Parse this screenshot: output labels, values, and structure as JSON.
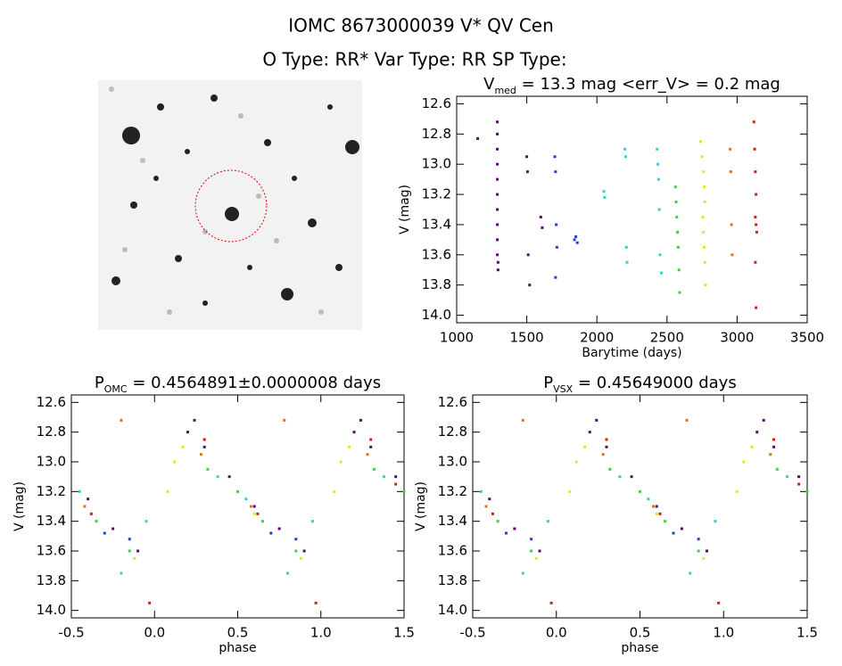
{
  "header": {
    "title": "IOMC 8673000039    V* QV Cen",
    "subtitle": "O Type: RR*  Var Type: RR  SP Type:"
  },
  "chart_data": [
    {
      "type": "scatter",
      "title": [
        {
          "text": "V"
        },
        {
          "text": "med",
          "sub": true
        },
        {
          "text": " = 13.3 mag <err_V> = 0.2 mag"
        }
      ],
      "x_label": "Barytime (days)",
      "y_label": "V (mag)",
      "xlim": [
        1000,
        3500
      ],
      "xticks": [
        1000,
        1500,
        2000,
        2500,
        3000,
        3500
      ],
      "ylim": [
        14.05,
        12.55
      ],
      "yticks": [
        12.6,
        12.8,
        {
          "value": 13,
          "label": "13.0"
        },
        13.2,
        13.4,
        13.6,
        13.8,
        {
          "value": 14,
          "label": "14.0"
        }
      ],
      "series": [
        {
          "color": "#5a0a6e",
          "x": [
            1150,
            1290,
            1290,
            1290,
            1290,
            1290,
            1290,
            1290,
            1290,
            1290,
            1290,
            1295,
            1295,
            1500,
            1505,
            1510,
            1520,
            1600,
            1610
          ],
          "y": [
            12.83,
            12.72,
            12.8,
            12.9,
            13.0,
            13.1,
            13.2,
            13.3,
            13.4,
            13.5,
            13.6,
            13.65,
            13.7,
            12.95,
            13.05,
            13.6,
            13.8,
            13.35,
            13.42
          ]
        },
        {
          "color": "#2040d0",
          "x": [
            1700,
            1705,
            1710,
            1715,
            1705,
            1840,
            1850,
            1860
          ],
          "y": [
            12.95,
            13.05,
            13.4,
            13.55,
            13.75,
            13.5,
            13.48,
            13.52
          ]
        },
        {
          "color": "#30d0d0",
          "x": [
            2050,
            2055,
            2200,
            2205,
            2210,
            2215,
            2430,
            2435,
            2440,
            2445,
            2450,
            2460
          ],
          "y": [
            13.18,
            13.22,
            12.9,
            12.95,
            13.55,
            13.65,
            12.9,
            13.0,
            13.1,
            13.3,
            13.6,
            13.72
          ]
        },
        {
          "color": "#40d040",
          "x": [
            2560,
            2565,
            2570,
            2575,
            2580,
            2585,
            2590
          ],
          "y": [
            13.15,
            13.25,
            13.35,
            13.45,
            13.55,
            13.7,
            13.85
          ]
        },
        {
          "color": "#d8ec20",
          "x": [
            2740,
            2750,
            2760,
            2765,
            2770,
            2755,
            2760,
            2765,
            2770,
            2775
          ],
          "y": [
            12.85,
            12.95,
            13.05,
            13.15,
            13.25,
            13.35,
            13.45,
            13.55,
            13.65,
            13.8
          ]
        },
        {
          "color": "#e07020",
          "x": [
            2950,
            2955,
            2960,
            2965
          ],
          "y": [
            12.9,
            13.05,
            13.4,
            13.6
          ]
        },
        {
          "color": "#d02010",
          "x": [
            3120,
            3125,
            3130,
            3135,
            3130,
            3135,
            3140,
            3130,
            3135
          ],
          "y": [
            12.72,
            12.9,
            13.05,
            13.2,
            13.35,
            13.4,
            13.45,
            13.65,
            13.95
          ]
        }
      ]
    },
    {
      "type": "scatter",
      "title": [
        {
          "text": "P"
        },
        {
          "text": "OMC",
          "sub": true
        },
        {
          "text": " = 0.4564891±0.0000008 days"
        }
      ],
      "x_label": "phase",
      "y_label": "V (mag)",
      "xlim": [
        -0.5,
        1.5
      ],
      "xticks": [
        -0.5,
        {
          "value": 0,
          "label": "0.0"
        },
        0.5,
        {
          "value": 1,
          "label": "1.0"
        },
        1.5
      ],
      "ylim": [
        14.05,
        12.55
      ],
      "yticks": [
        12.6,
        12.8,
        {
          "value": 13,
          "label": "13.0"
        },
        13.2,
        13.4,
        13.6,
        13.8,
        {
          "value": 14,
          "label": "14.0"
        }
      ],
      "series": [
        {
          "color": "#5a0a6e",
          "x": [
            -0.4,
            -0.25,
            -0.1,
            0.2,
            0.24,
            0.3,
            0.45,
            0.6,
            0.75,
            0.9,
            1.2,
            1.24,
            1.3,
            1.45
          ],
          "y": [
            13.25,
            13.45,
            13.6,
            12.8,
            12.72,
            12.9,
            13.1,
            13.3,
            13.45,
            13.6,
            12.8,
            12.72,
            12.9,
            13.1
          ]
        },
        {
          "color": "#2040d0",
          "x": [
            -0.3,
            -0.15,
            0.7,
            0.85
          ],
          "y": [
            13.48,
            13.52,
            13.48,
            13.52
          ]
        },
        {
          "color": "#30d0d0",
          "x": [
            -0.45,
            -0.2,
            -0.05,
            0.38,
            0.55,
            0.8,
            0.95,
            1.38
          ],
          "y": [
            13.2,
            13.75,
            13.4,
            13.1,
            13.25,
            13.75,
            13.4,
            13.1
          ]
        },
        {
          "color": "#40d040",
          "x": [
            -0.35,
            -0.15,
            0.32,
            0.5,
            0.65,
            0.85,
            1.32,
            1.5
          ],
          "y": [
            13.4,
            13.6,
            13.05,
            13.2,
            13.4,
            13.6,
            13.05,
            13.2
          ]
        },
        {
          "color": "#d8ec20",
          "x": [
            -0.12,
            0.08,
            0.12,
            0.17,
            0.6,
            0.88,
            1.08,
            1.12,
            1.17
          ],
          "y": [
            13.65,
            13.2,
            13.0,
            12.9,
            13.35,
            13.65,
            13.2,
            13.0,
            12.9
          ]
        },
        {
          "color": "#e07020",
          "x": [
            -0.42,
            -0.2,
            0.28,
            0.58,
            0.78,
            1.28
          ],
          "y": [
            13.3,
            12.72,
            12.95,
            13.3,
            12.72,
            12.95
          ]
        },
        {
          "color": "#d02010",
          "x": [
            -0.38,
            -0.03,
            0.3,
            0.62,
            0.97,
            1.3,
            1.45
          ],
          "y": [
            13.35,
            13.95,
            12.85,
            13.35,
            13.95,
            12.85,
            13.15
          ]
        }
      ]
    },
    {
      "type": "scatter",
      "title": [
        {
          "text": "P"
        },
        {
          "text": "VSX",
          "sub": true
        },
        {
          "text": " = 0.45649000 days"
        }
      ],
      "x_label": "phase",
      "y_label": "V (mag)",
      "xlim": [
        -0.5,
        1.5
      ],
      "xticks": [
        -0.5,
        {
          "value": 0,
          "label": "0.0"
        },
        0.5,
        {
          "value": 1,
          "label": "1.0"
        },
        1.5
      ],
      "ylim": [
        14.05,
        12.55
      ],
      "yticks": [
        12.6,
        12.8,
        {
          "value": 13,
          "label": "13.0"
        },
        13.2,
        13.4,
        13.6,
        13.8,
        {
          "value": 14,
          "label": "14.0"
        }
      ],
      "series": [
        {
          "color": "#5a0a6e",
          "x": [
            -0.4,
            -0.25,
            -0.1,
            0.2,
            0.24,
            0.3,
            0.45,
            0.6,
            0.75,
            0.9,
            1.2,
            1.24,
            1.3,
            1.45
          ],
          "y": [
            13.25,
            13.45,
            13.6,
            12.8,
            12.72,
            12.9,
            13.1,
            13.3,
            13.45,
            13.6,
            12.8,
            12.72,
            12.9,
            13.1
          ]
        },
        {
          "color": "#2040d0",
          "x": [
            -0.3,
            -0.15,
            0.7,
            0.85
          ],
          "y": [
            13.48,
            13.52,
            13.48,
            13.52
          ]
        },
        {
          "color": "#30d0d0",
          "x": [
            -0.45,
            -0.2,
            -0.05,
            0.38,
            0.55,
            0.8,
            0.95,
            1.38
          ],
          "y": [
            13.2,
            13.75,
            13.4,
            13.1,
            13.25,
            13.75,
            13.4,
            13.1
          ]
        },
        {
          "color": "#40d040",
          "x": [
            -0.35,
            -0.15,
            0.32,
            0.5,
            0.65,
            0.85,
            1.32,
            1.5
          ],
          "y": [
            13.4,
            13.6,
            13.05,
            13.2,
            13.4,
            13.6,
            13.05,
            13.2
          ]
        },
        {
          "color": "#d8ec20",
          "x": [
            -0.12,
            0.08,
            0.12,
            0.17,
            0.6,
            0.88,
            1.08,
            1.12,
            1.17
          ],
          "y": [
            13.65,
            13.2,
            13.0,
            12.9,
            13.35,
            13.65,
            13.2,
            13.0,
            12.9
          ]
        },
        {
          "color": "#e07020",
          "x": [
            -0.42,
            -0.2,
            0.28,
            0.58,
            0.78,
            1.28
          ],
          "y": [
            13.3,
            12.72,
            12.95,
            13.3,
            12.72,
            12.95
          ]
        },
        {
          "color": "#d02010",
          "x": [
            -0.38,
            -0.03,
            0.3,
            0.62,
            0.97,
            1.3,
            1.45
          ],
          "y": [
            13.35,
            13.95,
            12.85,
            13.35,
            13.95,
            12.85,
            13.15
          ]
        }
      ]
    }
  ]
}
